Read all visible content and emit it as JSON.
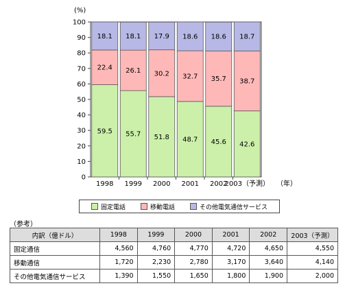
{
  "chart_data": {
    "type": "bar",
    "stacked": true,
    "y_unit": "(%)",
    "categories": [
      "1998",
      "1999",
      "2000",
      "2001",
      "2002",
      "2003（予測）"
    ],
    "x_unit": "（年）",
    "ylim": [
      0,
      100
    ],
    "yticks": [
      0,
      10,
      20,
      30,
      40,
      50,
      60,
      70,
      80,
      90,
      100
    ],
    "grid": false,
    "legend_position": "bottom",
    "series": [
      {
        "name": "固定電話",
        "values": [
          59.5,
          55.7,
          51.8,
          48.7,
          45.6,
          42.6
        ],
        "color": "#ccf0aa"
      },
      {
        "name": "移動電話",
        "values": [
          22.4,
          26.1,
          30.2,
          32.7,
          35.7,
          38.7
        ],
        "color": "#ffb8b8"
      },
      {
        "name": "その他電気通信サービス",
        "values": [
          18.1,
          18.1,
          17.9,
          18.6,
          18.6,
          18.7
        ],
        "color": "#b8b8e6"
      }
    ]
  },
  "reference": {
    "label": "（参考）",
    "header": [
      "内訳（億ドル）",
      "1998",
      "1999",
      "2000",
      "2001",
      "2002",
      "2003（予測）"
    ],
    "rows": [
      [
        "固定通信",
        "4,560",
        "4,760",
        "4,770",
        "4,720",
        "4,650",
        "4,550"
      ],
      [
        "移動通信",
        "1,720",
        "2,230",
        "2,780",
        "3,170",
        "3,640",
        "4,140"
      ],
      [
        "その他電気通信サービス",
        "1,390",
        "1,550",
        "1,650",
        "1,800",
        "1,900",
        "2,000"
      ]
    ]
  }
}
